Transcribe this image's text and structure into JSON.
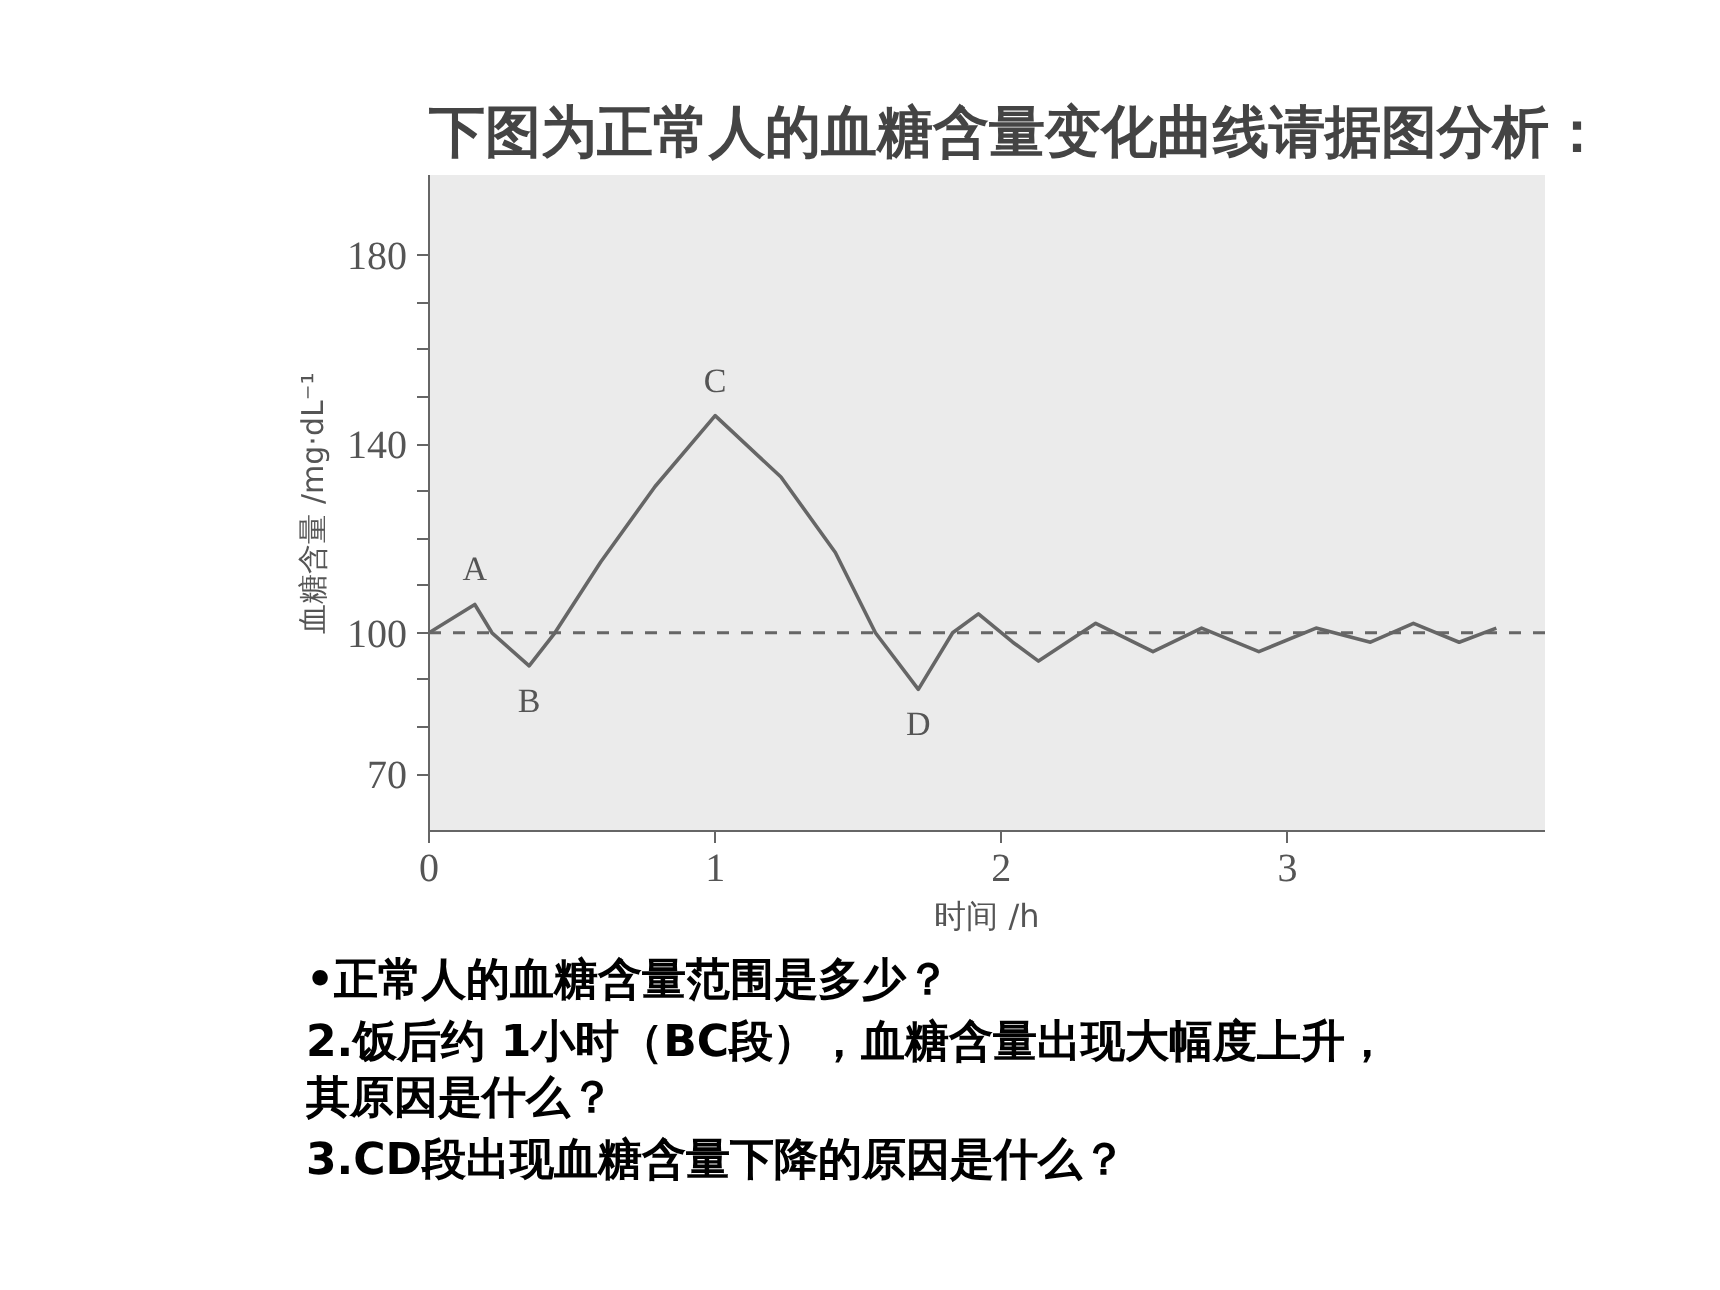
{
  "chart_data": {
    "type": "line",
    "title": "下图为正常人的血糖含量变化曲线请据图分析：",
    "xlabel": "时间 /h",
    "ylabel": "血糖含量 /mg·dL⁻¹",
    "x": [
      0,
      0.16,
      0.22,
      0.35,
      0.44,
      0.6,
      0.79,
      1.0,
      1.23,
      1.42,
      1.56,
      1.71,
      1.83,
      1.92,
      2.04,
      2.13,
      2.33,
      2.53,
      2.7,
      2.9,
      3.1,
      3.29,
      3.44,
      3.6,
      3.73
    ],
    "series": [
      {
        "color": "#666666",
        "values": [
          100,
          106,
          100,
          93,
          100,
          115,
          131,
          146,
          133,
          117,
          100,
          88,
          100,
          104,
          98,
          94,
          102,
          96,
          101,
          96,
          101,
          98,
          102,
          98,
          101
        ]
      }
    ],
    "xlim": [
      0,
      3.9
    ],
    "ylim": [
      58,
      197
    ],
    "xticks": [
      0,
      1,
      2,
      3
    ],
    "yticks": [
      70,
      {
        "value": 80,
        "label": null
      },
      {
        "value": 90,
        "label": null
      },
      100,
      {
        "value": 110,
        "label": null
      },
      {
        "value": 120,
        "label": null
      },
      {
        "value": 130,
        "label": null
      },
      140,
      {
        "value": 150,
        "label": null
      },
      {
        "value": 160,
        "label": null
      },
      {
        "value": 170,
        "label": null
      },
      180
    ],
    "ref_lines": [
      {
        "axis": "y",
        "value": 100,
        "line_style": "dashed",
        "color": "#666666"
      }
    ],
    "grid": false,
    "line_style": "solid",
    "marker": "none",
    "annotations": [
      {
        "text": "A",
        "x": 0.16,
        "y": 106
      },
      {
        "text": "B",
        "x": 0.35,
        "y": 93
      },
      {
        "text": "C",
        "x": 1.0,
        "y": 146
      },
      {
        "text": "D",
        "x": 1.71,
        "y": 88
      },
      "•正常人的血糖含量范围是多少？",
      "2.饭后约 1小时（BC段），血糖含量出现大幅度上升，其原因是什么？",
      "3.CD段出现血糖含量下降的原因是什么？"
    ]
  }
}
